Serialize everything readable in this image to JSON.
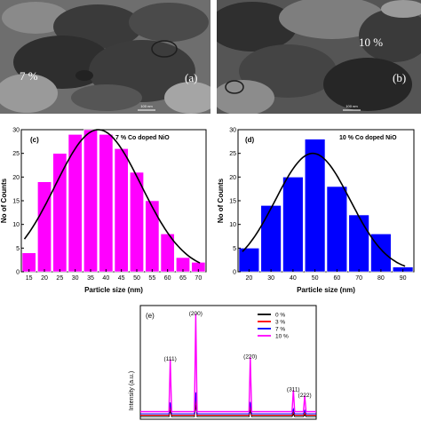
{
  "panel_a": {
    "conc_label": "7 %",
    "panel_label": "(a)",
    "scale_text": "100 nm"
  },
  "panel_b": {
    "conc_label": "10 %",
    "panel_label": "(b)",
    "scale_text": "100 nm"
  },
  "chart_data": [
    {
      "type": "bar",
      "panel_label": "(c)",
      "title": "7 % Co doped NiO",
      "xlabel": "Particle size (nm)",
      "ylabel": "No of Counts",
      "categories": [
        15,
        20,
        25,
        30,
        35,
        40,
        45,
        50,
        55,
        60,
        65,
        70
      ],
      "x_ticks": [
        15,
        20,
        25,
        30,
        35,
        40,
        45,
        50,
        55,
        60,
        65,
        70
      ],
      "values": [
        4,
        19,
        25,
        29,
        30,
        29,
        26,
        21,
        15,
        8,
        3,
        2
      ],
      "ylim": [
        0,
        30
      ],
      "y_ticks": [
        0,
        5,
        10,
        15,
        20,
        25,
        30
      ],
      "bar_color": "#ff00ff",
      "fit": "gaussian",
      "fit_params": {
        "peak": 30,
        "center": 37.5,
        "sigma": 14
      }
    },
    {
      "type": "bar",
      "panel_label": "(d)",
      "title": "10 % Co doped NiO",
      "xlabel": "Particle size (nm)",
      "ylabel": "No of Counts",
      "categories": [
        20,
        30,
        40,
        50,
        60,
        70,
        80,
        90
      ],
      "x_ticks": [
        20,
        30,
        40,
        50,
        60,
        70,
        80,
        90
      ],
      "values": [
        5,
        14,
        20,
        28,
        18,
        12,
        8,
        1
      ],
      "ylim": [
        0,
        30
      ],
      "y_ticks": [
        0,
        5,
        10,
        15,
        20,
        25,
        30
      ],
      "bar_color": "#0000ff",
      "fit": "gaussian",
      "fit_params": {
        "peak": 25,
        "center": 49,
        "sigma": 17
      }
    },
    {
      "type": "line",
      "panel_label": "(e)",
      "ylabel": "Intensity (a.u.)",
      "peaks": [
        {
          "label": "(111)",
          "x": 0.17,
          "height": 0.46
        },
        {
          "label": "(200)",
          "x": 0.315,
          "height": 0.86
        },
        {
          "label": "(220)",
          "x": 0.625,
          "height": 0.48
        },
        {
          "label": "(311)",
          "x": 0.87,
          "height": 0.19
        },
        {
          "label": "(222)",
          "x": 0.935,
          "height": 0.14
        }
      ],
      "series": [
        {
          "name": "0 %",
          "color": "#000000"
        },
        {
          "name": "3 %",
          "color": "#ff0000"
        },
        {
          "name": "7 %",
          "color": "#0000ff"
        },
        {
          "name": "10 %",
          "color": "#ff00ff"
        }
      ]
    }
  ]
}
